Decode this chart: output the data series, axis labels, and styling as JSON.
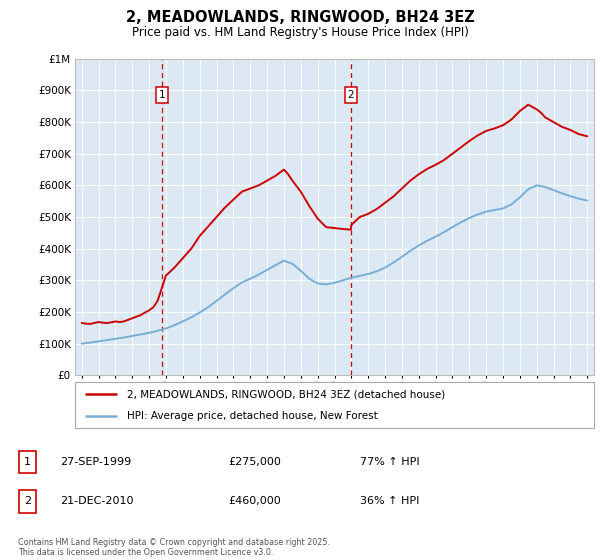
{
  "title": "2, MEADOWLANDS, RINGWOOD, BH24 3EZ",
  "subtitle": "Price paid vs. HM Land Registry's House Price Index (HPI)",
  "footer": "Contains HM Land Registry data © Crown copyright and database right 2025.\nThis data is licensed under the Open Government Licence v3.0.",
  "legend_line1": "2, MEADOWLANDS, RINGWOOD, BH24 3EZ (detached house)",
  "legend_line2": "HPI: Average price, detached house, New Forest",
  "annotation1": {
    "label": "1",
    "date": "27-SEP-1999",
    "price": "£275,000",
    "pct": "77% ↑ HPI"
  },
  "annotation2": {
    "label": "2",
    "date": "21-DEC-2010",
    "price": "£460,000",
    "pct": "36% ↑ HPI"
  },
  "vline1_x": 1999.75,
  "vline2_x": 2010.97,
  "ylim": [
    0,
    1000000
  ],
  "xlim": [
    1994.6,
    2025.4
  ],
  "red_color": "#cc0000",
  "blue_color": "#7aadd4",
  "plot_bg": "#dce9f5",
  "red_line_x": [
    1995,
    1995.25,
    1995.5,
    1995.75,
    1996,
    1996.25,
    1996.5,
    1996.75,
    1997,
    1997.25,
    1997.5,
    1997.75,
    1998,
    1998.25,
    1998.5,
    1998.75,
    1999,
    1999.25,
    1999.5,
    1999.75,
    2000,
    2000.5,
    2001,
    2001.5,
    2002,
    2002.5,
    2003,
    2003.5,
    2004,
    2004.5,
    2005,
    2005.5,
    2006,
    2006.5,
    2007,
    2007.25,
    2007.5,
    2008,
    2008.5,
    2009,
    2009.5,
    2010,
    2010.5,
    2010.97,
    2011,
    2011.5,
    2012,
    2012.5,
    2013,
    2013.5,
    2014,
    2014.5,
    2015,
    2015.5,
    2016,
    2016.5,
    2017,
    2017.5,
    2018,
    2018.5,
    2019,
    2019.5,
    2020,
    2020.5,
    2021,
    2021.5,
    2022,
    2022.25,
    2022.5,
    2023,
    2023.5,
    2024,
    2024.5,
    2025
  ],
  "red_line_y": [
    165000,
    163000,
    162000,
    165000,
    168000,
    166000,
    165000,
    167000,
    170000,
    168000,
    170000,
    175000,
    180000,
    185000,
    190000,
    198000,
    205000,
    215000,
    235000,
    275000,
    315000,
    340000,
    370000,
    400000,
    440000,
    470000,
    500000,
    530000,
    555000,
    580000,
    590000,
    600000,
    615000,
    630000,
    650000,
    635000,
    615000,
    580000,
    535000,
    495000,
    468000,
    465000,
    462000,
    460000,
    475000,
    500000,
    510000,
    525000,
    545000,
    565000,
    590000,
    615000,
    635000,
    652000,
    665000,
    680000,
    700000,
    720000,
    740000,
    758000,
    772000,
    780000,
    790000,
    808000,
    835000,
    855000,
    840000,
    830000,
    815000,
    800000,
    785000,
    775000,
    762000,
    755000
  ],
  "blue_line_x": [
    1995,
    1995.5,
    1996,
    1996.5,
    1997,
    1997.5,
    1998,
    1998.5,
    1999,
    1999.5,
    2000,
    2000.5,
    2001,
    2001.5,
    2002,
    2002.5,
    2003,
    2003.5,
    2004,
    2004.5,
    2005,
    2005.5,
    2006,
    2006.5,
    2007,
    2007.5,
    2008,
    2008.5,
    2009,
    2009.5,
    2010,
    2010.5,
    2011,
    2011.5,
    2012,
    2012.5,
    2013,
    2013.5,
    2014,
    2014.5,
    2015,
    2015.5,
    2016,
    2016.5,
    2017,
    2017.5,
    2018,
    2018.5,
    2019,
    2019.5,
    2020,
    2020.5,
    2021,
    2021.5,
    2022,
    2022.5,
    2023,
    2023.5,
    2024,
    2024.5,
    2025
  ],
  "blue_line_y": [
    100000,
    103000,
    107000,
    111000,
    115000,
    119000,
    124000,
    129000,
    134000,
    140000,
    148000,
    158000,
    170000,
    183000,
    198000,
    215000,
    235000,
    255000,
    275000,
    293000,
    305000,
    318000,
    333000,
    348000,
    362000,
    352000,
    330000,
    305000,
    290000,
    287000,
    292000,
    300000,
    308000,
    314000,
    320000,
    328000,
    340000,
    356000,
    374000,
    393000,
    410000,
    425000,
    438000,
    452000,
    468000,
    483000,
    497000,
    508000,
    517000,
    522000,
    527000,
    540000,
    562000,
    588000,
    600000,
    595000,
    585000,
    575000,
    566000,
    558000,
    552000
  ]
}
